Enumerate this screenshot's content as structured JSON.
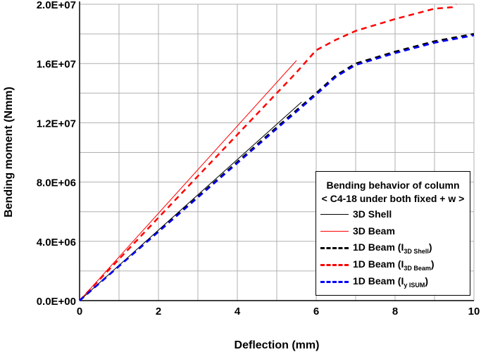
{
  "chart_data": {
    "type": "line",
    "xlabel": "Deflection (mm)",
    "ylabel": "Bending moment (Nmm)",
    "xlim": [
      0,
      10
    ],
    "ylim": [
      0,
      20000000
    ],
    "x_ticks": [
      "0",
      "2",
      "4",
      "6",
      "8",
      "10"
    ],
    "y_ticks": [
      "0.0E+00",
      "4.0E+06",
      "8.0E+06",
      "1.2E+07",
      "1.6E+07",
      "2.0E+07"
    ],
    "grid": true,
    "legend": {
      "placement": "bottom-right",
      "title_line1": "Bending behavior of column",
      "title_line2": "< C4-18 under both fixed + w >"
    },
    "series": [
      {
        "name": "3D Shell",
        "color": "#000000",
        "style": "solid",
        "x": [
          0,
          5.63
        ],
        "y": [
          0,
          13400000
        ]
      },
      {
        "name": "3D Beam",
        "color": "#ff0000",
        "style": "solid",
        "x": [
          0,
          5.5
        ],
        "y": [
          0,
          16200000
        ]
      },
      {
        "name": "1D Beam (I3D Shell)",
        "label_main": "1D Beam (I",
        "label_sub": "3D Shell",
        "label_end": ")",
        "color": "#000000",
        "style": "dashed",
        "x": [
          0,
          5,
          6,
          6.5,
          7,
          8,
          9,
          10
        ],
        "y": [
          0,
          11700000,
          14000000,
          15200000,
          16000000,
          16800000,
          17500000,
          18000000
        ]
      },
      {
        "name": "1D Beam (I3D Beam)",
        "label_main": "1D Beam (I",
        "label_sub": "3D Beam",
        "label_end": ")",
        "color": "#ff0000",
        "style": "dashed",
        "x": [
          0,
          5,
          5.5,
          6,
          6.5,
          7,
          8,
          9,
          9.45,
          9.55
        ],
        "y": [
          0,
          14000000,
          15400000,
          16900000,
          17600000,
          18200000,
          19000000,
          19700000,
          19800000,
          20000000
        ]
      },
      {
        "name": "1D Beam (Iy ISUM)",
        "label_main": "1D Beam (I",
        "label_sub": "y  ISUM",
        "label_end": ")",
        "color": "#0000ff",
        "style": "dashed",
        "x": [
          0,
          5,
          6,
          6.5,
          7,
          8,
          9,
          10
        ],
        "y": [
          0,
          11600000,
          13900000,
          15100000,
          15900000,
          16700000,
          17400000,
          17900000
        ]
      }
    ]
  }
}
